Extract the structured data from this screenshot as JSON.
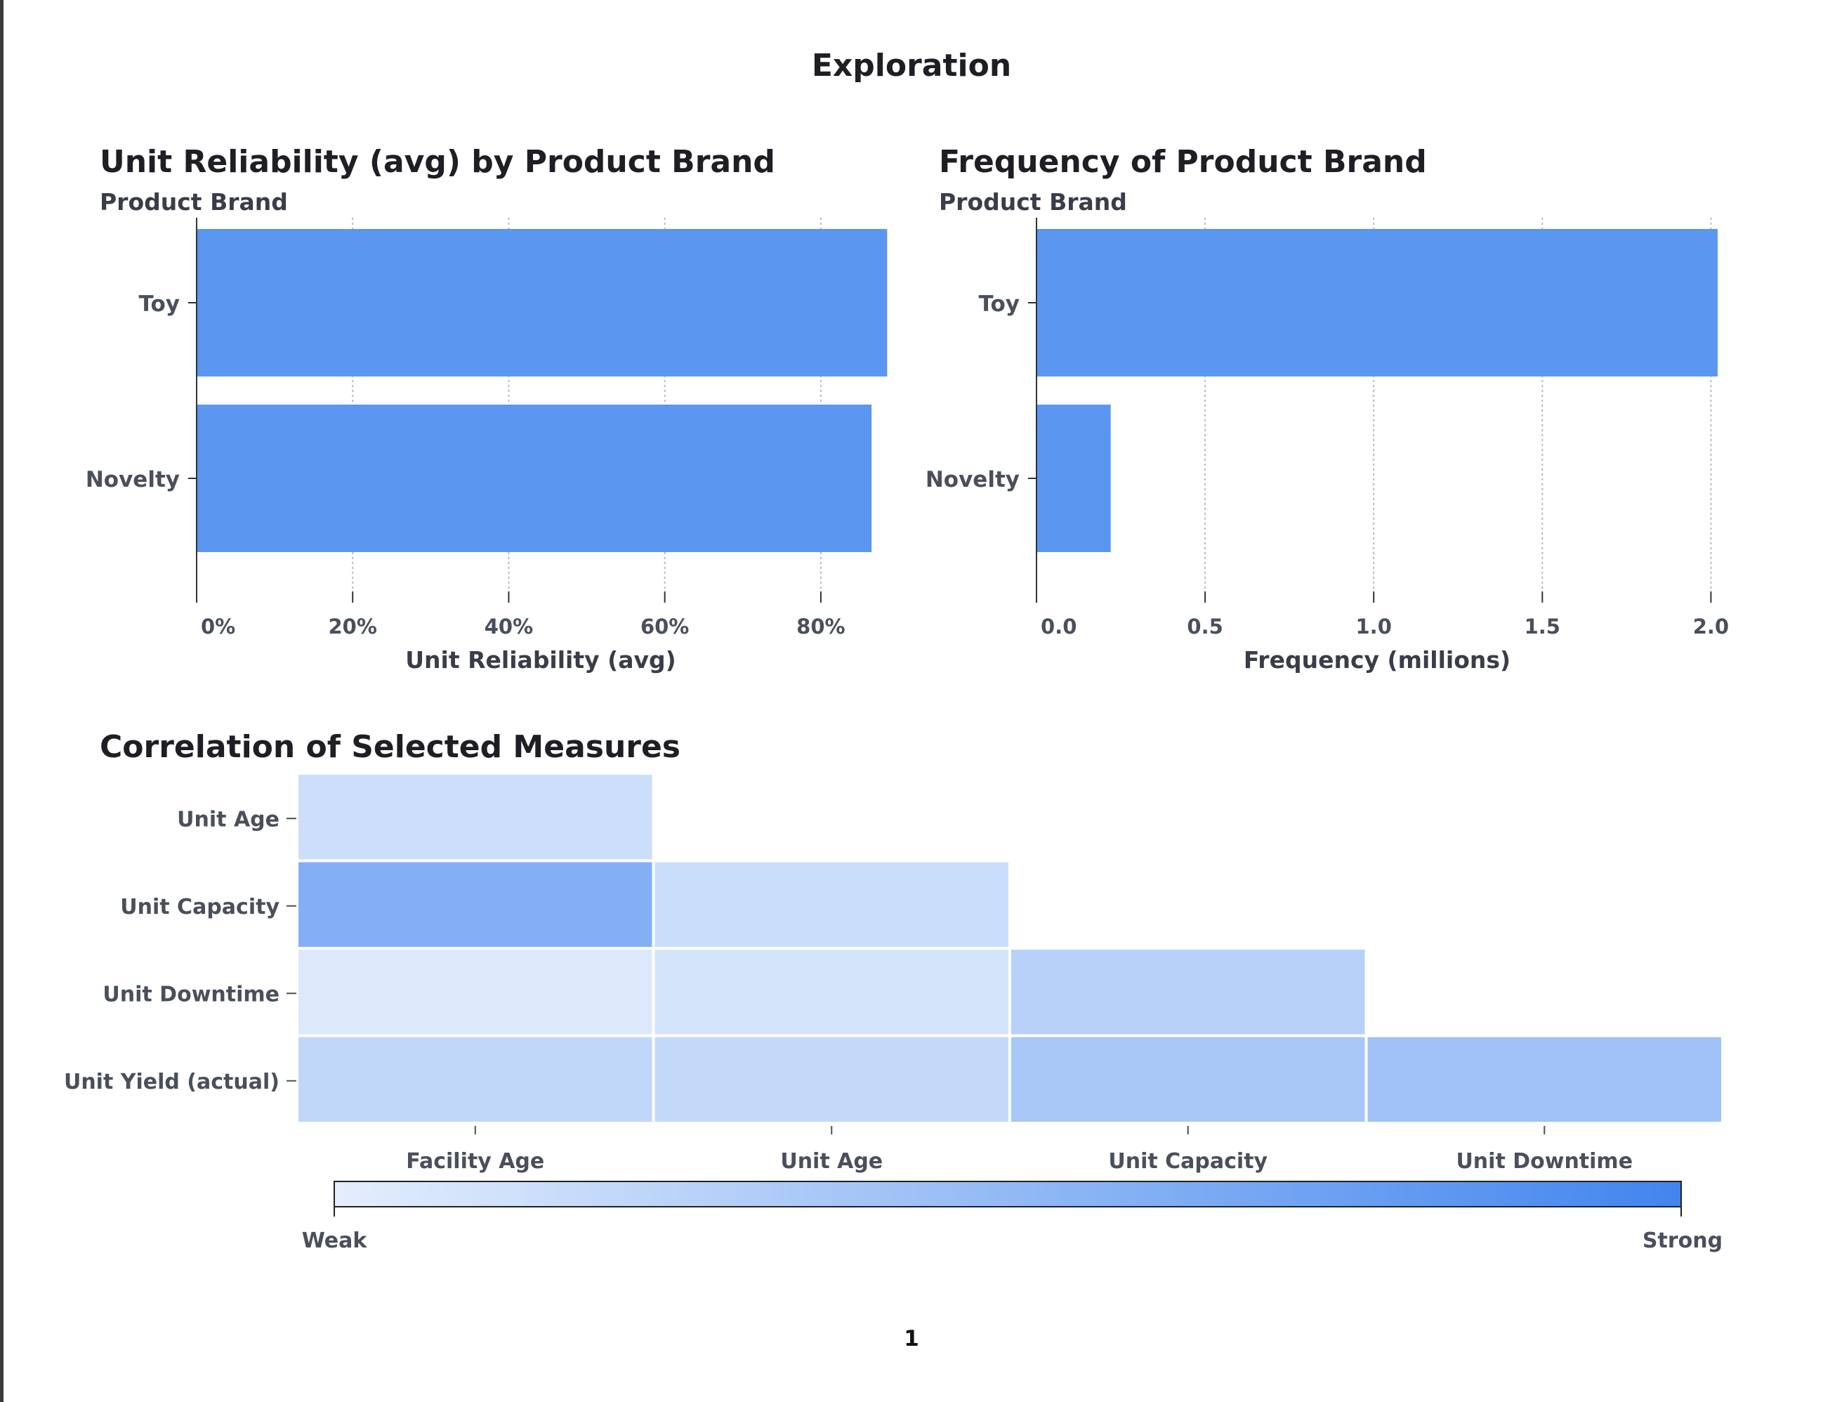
{
  "report": {
    "title": "Exploration",
    "page_number": "1"
  },
  "colors": {
    "bar": "#5b96f0",
    "axis": "#333333",
    "tick_text": "#4a4f5c",
    "grid": "#b9b9b9",
    "heat_weak": "#e4eefc",
    "heat_strong": "#4285ee"
  },
  "chart_data": [
    {
      "type": "bar",
      "orientation": "horizontal",
      "title": "Unit Reliability (avg) by Product Brand",
      "ylabel": "Product Brand",
      "xlabel": "Unit Reliability (avg)",
      "categories": [
        "Toy",
        "Novelty"
      ],
      "values": [
        0.885,
        0.865
      ],
      "xlim": [
        0,
        0.9
      ],
      "xticks": [
        0,
        0.2,
        0.4,
        0.6,
        0.8
      ],
      "xtick_labels": [
        "0%",
        "20%",
        "40%",
        "60%",
        "80%"
      ],
      "grid": true
    },
    {
      "type": "bar",
      "orientation": "horizontal",
      "title": "Frequency of Product Brand",
      "ylabel": "Product Brand",
      "xlabel": "Frequency (millions)",
      "categories": [
        "Toy",
        "Novelty"
      ],
      "values": [
        2.02,
        0.22
      ],
      "xlim": [
        0,
        2.02
      ],
      "xticks": [
        0,
        0.5,
        1.0,
        1.5,
        2.0
      ],
      "xtick_labels": [
        "0.0",
        "0.5",
        "1.0",
        "1.5",
        "2.0"
      ],
      "grid": true
    },
    {
      "type": "heatmap",
      "title": "Correlation of Selected Measures",
      "rows": [
        "Unit Age",
        "Unit Capacity",
        "Unit Downtime",
        "Unit Yield (actual)"
      ],
      "columns": [
        "Facility Age",
        "Unit Age",
        "Unit Capacity",
        "Unit Downtime"
      ],
      "values": [
        [
          0.15,
          null,
          null,
          null
        ],
        [
          0.6,
          0.16,
          null,
          null
        ],
        [
          0.05,
          0.1,
          0.28,
          null
        ],
        [
          0.22,
          0.2,
          0.37,
          0.42
        ]
      ],
      "legend": {
        "min_label": "Weak",
        "max_label": "Strong"
      }
    }
  ]
}
